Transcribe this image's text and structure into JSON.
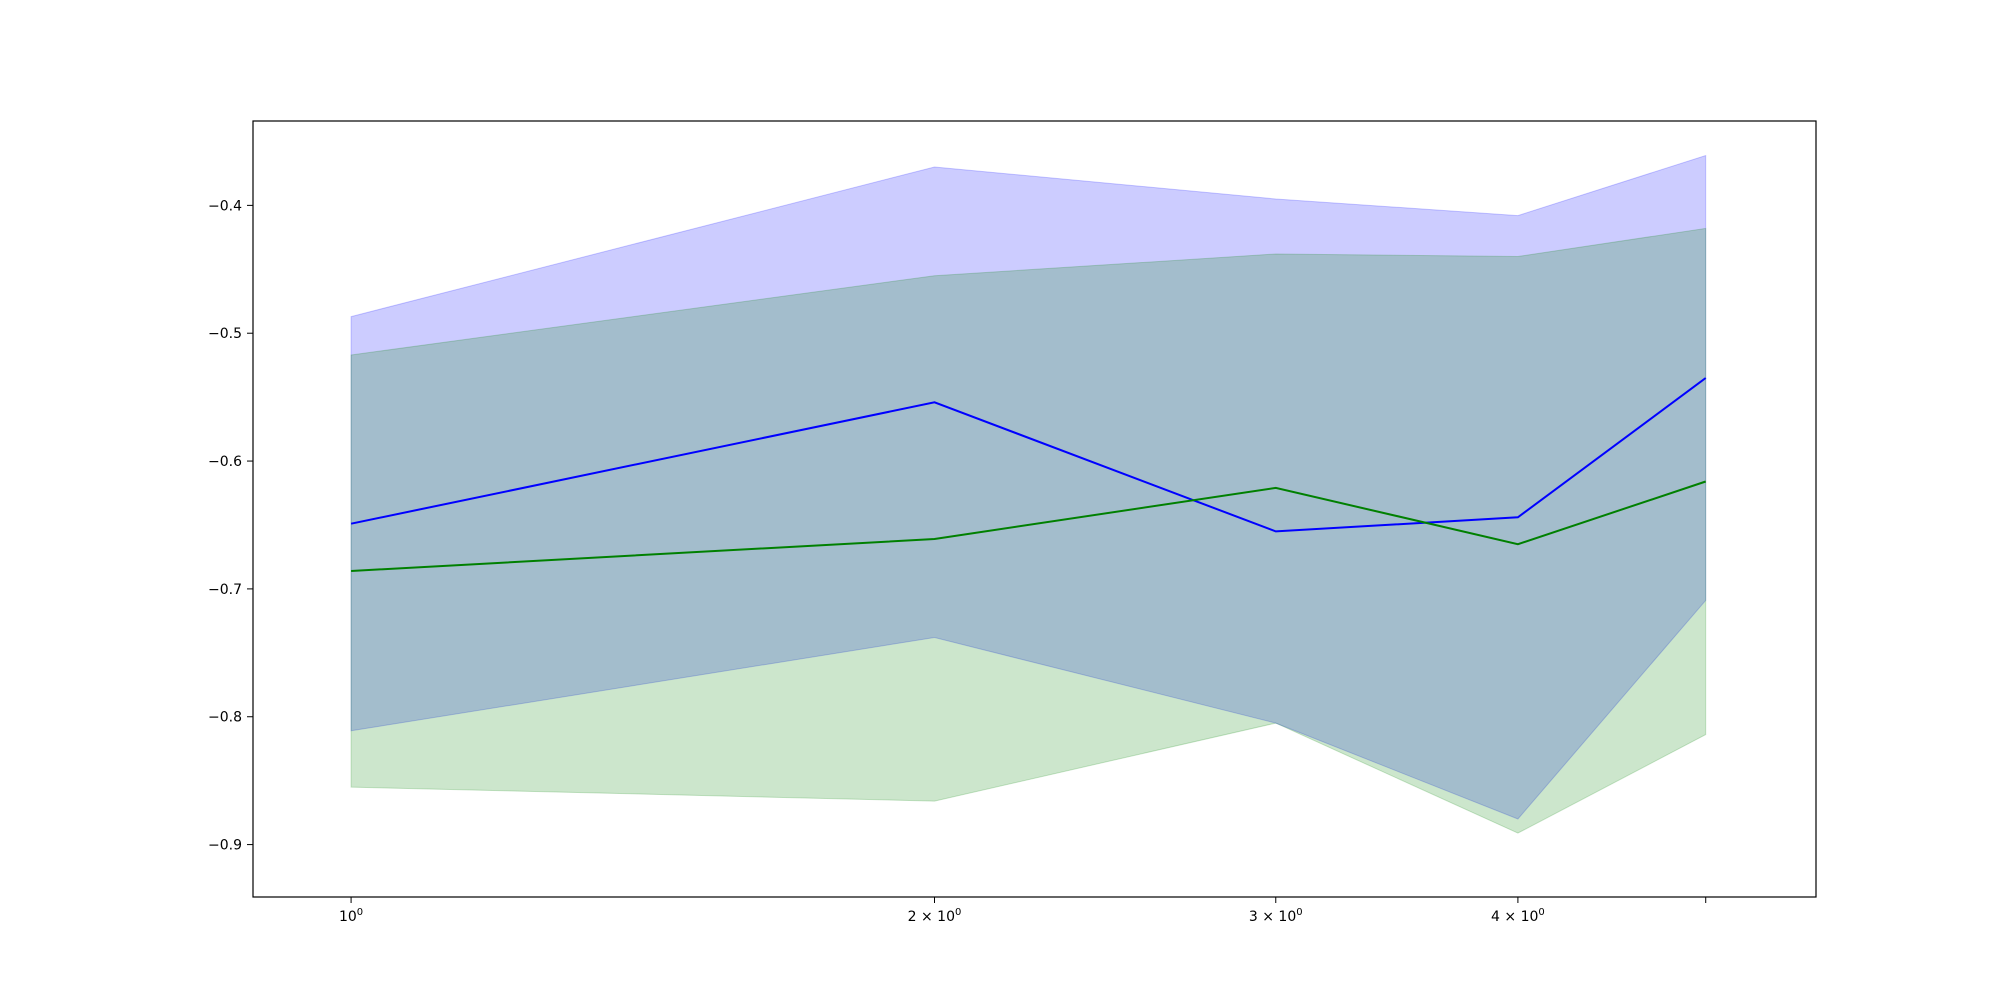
{
  "chart_data": {
    "type": "line",
    "title": "",
    "xlabel": "",
    "ylabel": "",
    "x_scale": "log",
    "x": [
      1,
      2,
      3,
      4,
      5
    ],
    "xlim": [
      0.89,
      5.7
    ],
    "ylim": [
      -0.941,
      -0.334
    ],
    "x_ticks": [
      {
        "value": 1,
        "base": "10",
        "exp": "0"
      },
      {
        "value": 2,
        "base": "2 × 10",
        "exp": "0"
      },
      {
        "value": 3,
        "base": "3 × 10",
        "exp": "0"
      },
      {
        "value": 4,
        "base": "4 × 10",
        "exp": "0"
      },
      {
        "value": 5,
        "base": "",
        "exp": ""
      }
    ],
    "y_ticks": [
      {
        "value": -0.4,
        "label": "−0.4"
      },
      {
        "value": -0.5,
        "label": "−0.5"
      },
      {
        "value": -0.6,
        "label": "−0.6"
      },
      {
        "value": -0.7,
        "label": "−0.7"
      },
      {
        "value": -0.8,
        "label": "−0.8"
      },
      {
        "value": -0.9,
        "label": "−0.9"
      }
    ],
    "grid": false,
    "legend": "none",
    "series": [
      {
        "color": "#0000ff",
        "fill_color": "#0000ff",
        "fill_opacity": 0.2,
        "values": [
          -0.649,
          -0.554,
          -0.655,
          -0.644,
          -0.535
        ],
        "upper": [
          -0.487,
          -0.37,
          -0.395,
          -0.408,
          -0.361
        ],
        "lower": [
          -0.811,
          -0.738,
          -0.805,
          -0.88,
          -0.709
        ]
      },
      {
        "color": "#008000",
        "fill_color": "#008000",
        "fill_opacity": 0.2,
        "values": [
          -0.686,
          -0.661,
          -0.621,
          -0.665,
          -0.616
        ],
        "upper": [
          -0.517,
          -0.455,
          -0.438,
          -0.44,
          -0.418
        ],
        "lower": [
          -0.855,
          -0.866,
          -0.805,
          -0.891,
          -0.814
        ]
      }
    ]
  }
}
